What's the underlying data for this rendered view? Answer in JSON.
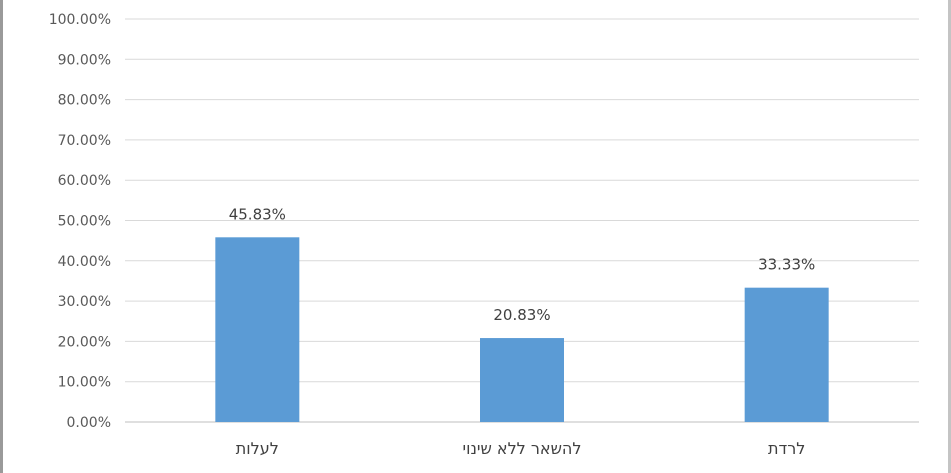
{
  "chart_data": {
    "type": "bar",
    "categories": [
      "לעלות",
      "להשאר ללא שינוי",
      "לרדת"
    ],
    "values": [
      45.83,
      20.83,
      33.33
    ],
    "data_labels": [
      "45.83%",
      "20.83%",
      "33.33%"
    ],
    "ylim": [
      0,
      100
    ],
    "y_ticks": [
      0,
      10,
      20,
      30,
      40,
      50,
      60,
      70,
      80,
      90,
      100
    ],
    "y_tick_labels": [
      "0.00%",
      "10.00%",
      "20.00%",
      "30.00%",
      "40.00%",
      "50.00%",
      "60.00%",
      "70.00%",
      "80.00%",
      "90.00%",
      "100.00%"
    ],
    "grid": true,
    "legend": "none",
    "colors": {
      "bar": "#5b9bd5",
      "grid": "#d9d9d9",
      "axis": "#bfbfbf"
    }
  }
}
